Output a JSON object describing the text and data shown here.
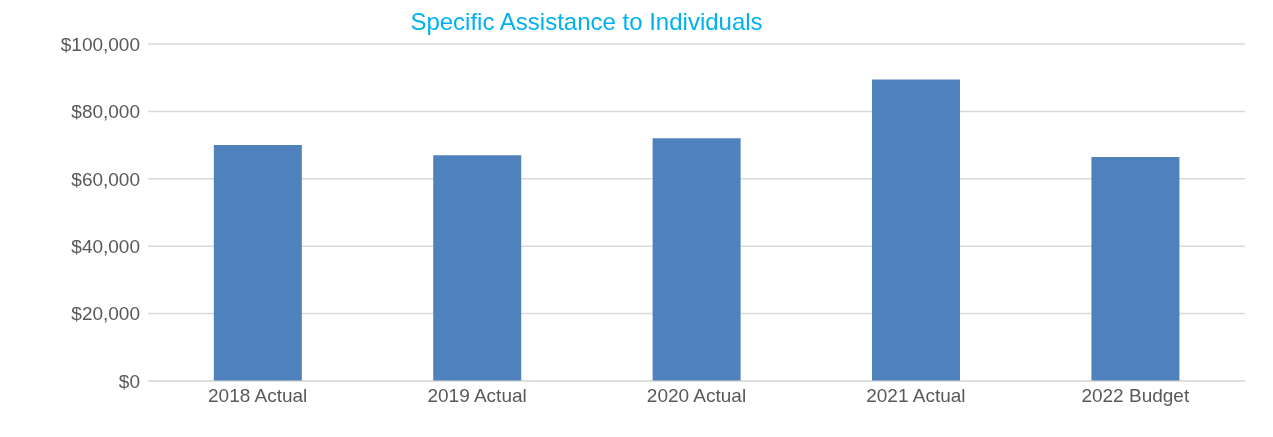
{
  "chart_data": {
    "type": "bar",
    "title": "Specific Assistance to Individuals",
    "categories": [
      "2018 Actual",
      "2019 Actual",
      "2020 Actual",
      "2021 Actual",
      "2022 Budget"
    ],
    "values": [
      70000,
      67000,
      72000,
      89500,
      66500
    ],
    "color": "#4f81bd",
    "ylim": [
      0,
      100000
    ],
    "yticks": [
      {
        "value": 0,
        "label": "$0"
      },
      {
        "value": 20000,
        "label": "$20,000"
      },
      {
        "value": 40000,
        "label": "$40,000"
      },
      {
        "value": 60000,
        "label": "$60,000"
      },
      {
        "value": 80000,
        "label": "$80,000"
      },
      {
        "value": 100000,
        "label": "$100,000"
      }
    ],
    "grid": "y"
  }
}
